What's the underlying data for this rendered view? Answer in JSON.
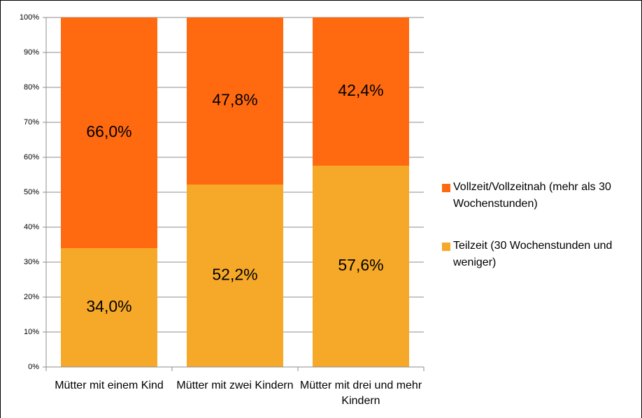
{
  "chart_data": {
    "type": "stacked_bar",
    "categories": [
      "Mütter mit einem Kind",
      "Mütter mit zwei Kindern",
      "Mütter mit drei und mehr Kindern"
    ],
    "series": [
      {
        "name": "Teilzeit (30 Wochenstunden und weniger)",
        "color": "#f6a828",
        "values": [
          34.0,
          52.2,
          57.6
        ],
        "value_labels": [
          "34,0%",
          "52,2%",
          "57,6%"
        ]
      },
      {
        "name": "Vollzeit/Vollzeitnah (mehr als 30 Wochenstunden)",
        "color": "#ff6a10",
        "values": [
          66.0,
          47.8,
          42.4
        ],
        "value_labels": [
          "66,0%",
          "47,8%",
          "42,4%"
        ]
      }
    ],
    "ylim": [
      0,
      100
    ],
    "yticks": [
      {
        "value": 0,
        "label": "0%"
      },
      {
        "value": 10,
        "label": "10%"
      },
      {
        "value": 20,
        "label": "20%"
      },
      {
        "value": 30,
        "label": "30%"
      },
      {
        "value": 40,
        "label": "40%"
      },
      {
        "value": 50,
        "label": "50%"
      },
      {
        "value": 60,
        "label": "60%"
      },
      {
        "value": 70,
        "label": "70%"
      },
      {
        "value": 80,
        "label": "80%"
      },
      {
        "value": 90,
        "label": "90%"
      },
      {
        "value": 100,
        "label": "100%"
      }
    ],
    "grid": true,
    "legend": "right"
  }
}
